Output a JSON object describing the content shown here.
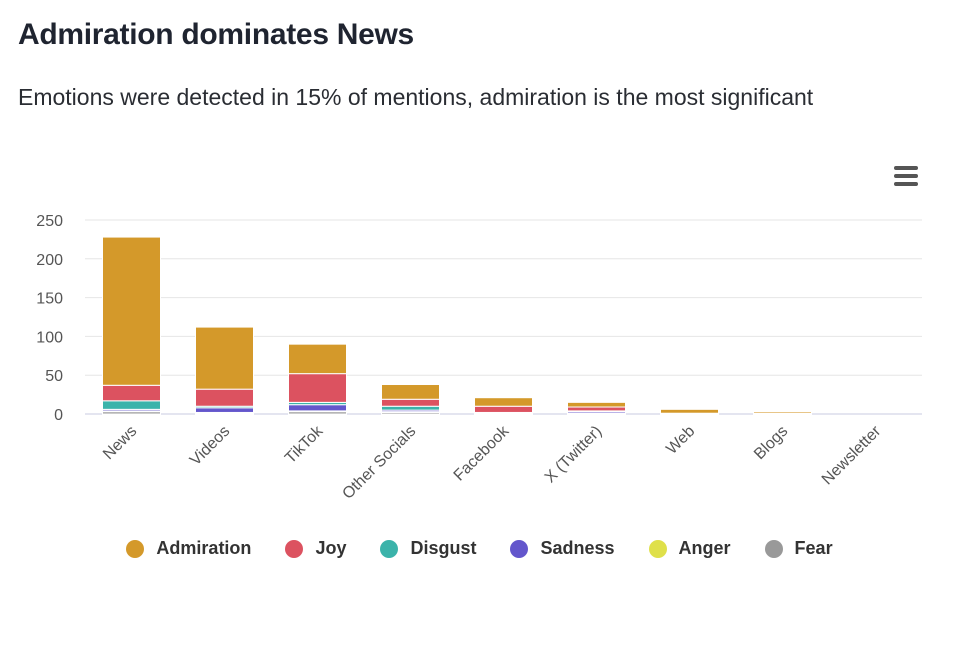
{
  "title": "Admiration dominates News",
  "subtitle": "Emotions were detected in 15% of mentions, admiration is the most significant",
  "menu_icon": "hamburger-menu-icon",
  "colors": {
    "Admiration": "#d4992a",
    "Joy": "#dc5260",
    "Disgust": "#3bb3aa",
    "Sadness": "#6356cc",
    "Anger": "#dfe04a",
    "Fear": "#999999"
  },
  "chart_data": {
    "type": "bar",
    "stacked": true,
    "title": "Admiration dominates News",
    "subtitle": "Emotions were detected in 15% of mentions, admiration is the most significant",
    "xlabel": "",
    "ylabel": "",
    "ylim": [
      0,
      250
    ],
    "yticks": [
      "0",
      "50",
      "100",
      "150",
      "200",
      "250"
    ],
    "grid": true,
    "legend_position": "bottom",
    "categories": [
      "News",
      "Videos",
      "TikTok",
      "Other Socials",
      "Facebook",
      "X (Twitter)",
      "Web",
      "Blogs",
      "Newsletter"
    ],
    "series": [
      {
        "name": "Fear",
        "values": [
          3,
          1,
          3,
          2,
          1,
          1,
          0,
          0,
          0
        ]
      },
      {
        "name": "Anger",
        "values": [
          1,
          1,
          1,
          1,
          0,
          0,
          0,
          0,
          0
        ]
      },
      {
        "name": "Sadness",
        "values": [
          2,
          6,
          8,
          2,
          1,
          2,
          0,
          0,
          0
        ]
      },
      {
        "name": "Disgust",
        "values": [
          11,
          2,
          3,
          5,
          0,
          1,
          0,
          0,
          0
        ]
      },
      {
        "name": "Joy",
        "values": [
          20,
          22,
          37,
          9,
          8,
          5,
          1,
          1,
          0
        ]
      },
      {
        "name": "Admiration",
        "values": [
          191,
          80,
          38,
          19,
          11,
          6,
          5,
          2,
          0
        ]
      }
    ],
    "legend": [
      "Admiration",
      "Joy",
      "Disgust",
      "Sadness",
      "Anger",
      "Fear"
    ]
  }
}
